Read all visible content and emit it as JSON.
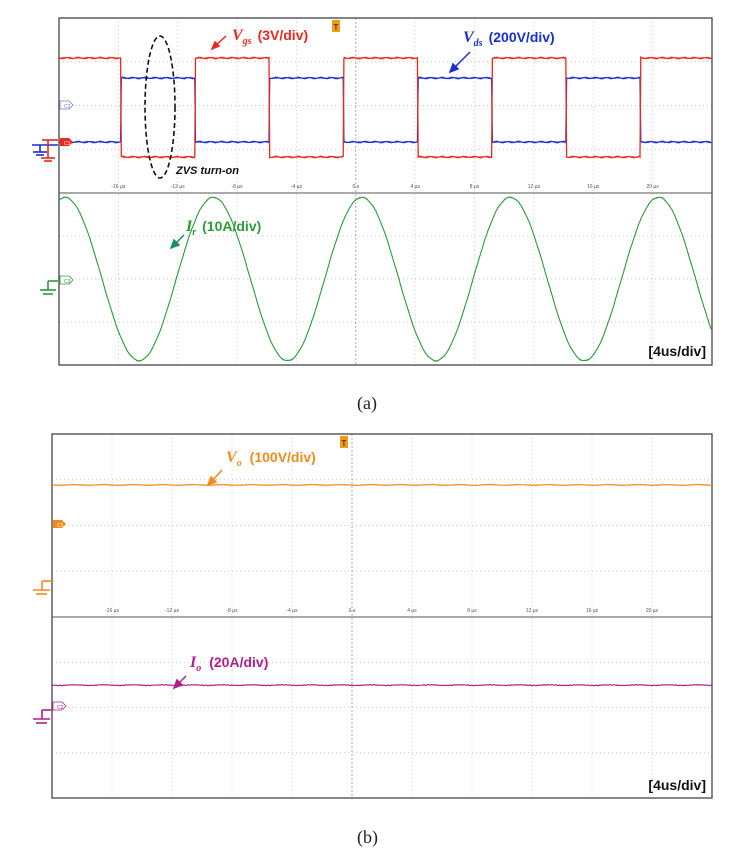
{
  "figure": {
    "caption_a": "(a)",
    "caption_b": "(b)"
  },
  "chart_data": [
    {
      "type": "line",
      "panel": "a",
      "time_scale": "[4us/div]",
      "x_tick_labels": [
        "-16 µs",
        "-12 µs",
        "-8 µs",
        "-4 µs",
        "0 s",
        "4 µs",
        "8 µs",
        "12 µs",
        "16 µs",
        "20 µs"
      ],
      "channel_tags": [
        "C2",
        "C1",
        "C3"
      ],
      "trigger_tag": "T",
      "annotation": "ZVS turn-on",
      "colors": {
        "vgs": "#e8291c",
        "vds": "#1a2fd0",
        "ir": "#2e9a3a",
        "annotation": "#1f8f5f"
      },
      "series": [
        {
          "name": "Vgs (3V/div)",
          "label_main": "V",
          "label_sub": "gs",
          "label_scale": "(3V/div)",
          "waveform": "square",
          "period_us": 10.0,
          "high_level_div": -0.8,
          "low_level_div": 1.3,
          "high_phase_us": [
            -10.8,
            -5.8
          ]
        },
        {
          "name": "Vds (200V/div)",
          "label_main": "V",
          "label_sub": "ds",
          "label_scale": "(200V/div)",
          "waveform": "square",
          "period_us": 10.0,
          "high_level_div": 0.2,
          "low_level_div": 1.2,
          "high_phase_us": [
            -15.8,
            -10.8
          ]
        },
        {
          "name": "Ir (10A/div)",
          "label_main": "I",
          "label_sub": "r",
          "label_scale": "(10A/div)",
          "waveform": "sine",
          "period_us": 10.0,
          "amplitude_div": 1.9,
          "peak_time_us": -9.6
        }
      ]
    },
    {
      "type": "line",
      "panel": "b",
      "time_scale": "[4us/div]",
      "x_tick_labels": [
        "-16 µs",
        "-12 µs",
        "-8 µs",
        "-4 µs",
        "0 s",
        "4 µs",
        "8 µs",
        "12 µs",
        "16 µs",
        "20 µs"
      ],
      "channel_tags": [
        "C1",
        "C2"
      ],
      "trigger_tag": "T",
      "colors": {
        "vo": "#f08a1a",
        "io": "#b0208a"
      },
      "series": [
        {
          "name": "Vo (100V/div)",
          "label_main": "V",
          "label_sub": "o",
          "label_scale": "(100V/div)",
          "waveform": "dc",
          "level_div_above_ground": 2.1
        },
        {
          "name": "Io (20A/div)",
          "label_main": "I",
          "label_sub": "o",
          "label_scale": "(20A/div)",
          "waveform": "dc",
          "level_div_above_ground": 0.55
        }
      ]
    }
  ]
}
